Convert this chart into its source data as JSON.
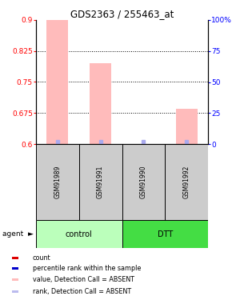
{
  "title": "GDS2363 / 255463_at",
  "samples": [
    "GSM91989",
    "GSM91991",
    "GSM91990",
    "GSM91992"
  ],
  "groups": [
    "control",
    "control",
    "DTT",
    "DTT"
  ],
  "ylim_left": [
    0.6,
    0.9
  ],
  "ylim_right": [
    0,
    100
  ],
  "yticks_left": [
    0.6,
    0.675,
    0.75,
    0.825,
    0.9
  ],
  "ytick_labels_left": [
    "0.6",
    "0.675",
    "0.75",
    "0.825",
    "0.9"
  ],
  "yticks_right": [
    0,
    25,
    50,
    75,
    100
  ],
  "ytick_labels_right": [
    "0",
    "25",
    "50",
    "75",
    "100%"
  ],
  "pink_bar_values": [
    0.9,
    0.795,
    0.6,
    0.685
  ],
  "blue_marker_values": [
    0.605,
    0.605,
    0.605,
    0.605
  ],
  "bar_color": "#ffbbbb",
  "marker_color": "#aaaaee",
  "bar_bottom": 0.6,
  "sample_bg_color": "#cccccc",
  "control_color": "#bbffbb",
  "dtt_color": "#44dd44",
  "legend_items": [
    {
      "color": "#dd0000",
      "label": "count"
    },
    {
      "color": "#0000cc",
      "label": "percentile rank within the sample"
    },
    {
      "color": "#ffbbbb",
      "label": "value, Detection Call = ABSENT"
    },
    {
      "color": "#bbbbee",
      "label": "rank, Detection Call = ABSENT"
    }
  ],
  "bar_width": 0.5
}
